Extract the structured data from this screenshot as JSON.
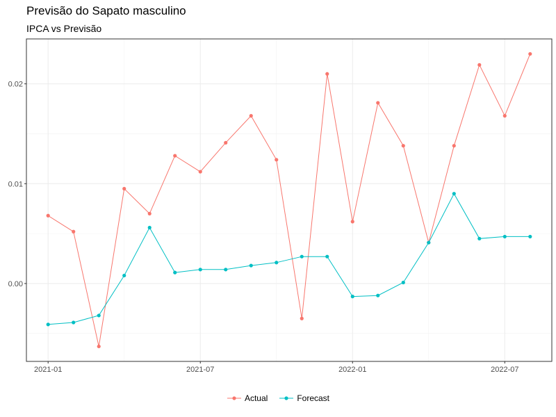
{
  "chart_data": {
    "type": "line",
    "title": "Previsão do Sapato masculino",
    "subtitle": "IPCA vs Previsão",
    "xlabel": "",
    "ylabel": "",
    "x": [
      "2021-01",
      "2021-02",
      "2021-03",
      "2021-04",
      "2021-05",
      "2021-06",
      "2021-07",
      "2021-08",
      "2021-09",
      "2021-10",
      "2021-11",
      "2021-12",
      "2022-01",
      "2022-02",
      "2022-03",
      "2022-04",
      "2022-05",
      "2022-06",
      "2022-07",
      "2022-08"
    ],
    "x_ticks": [
      "2021-01",
      "2021-07",
      "2022-01",
      "2022-07"
    ],
    "y_ticks": [
      0.0,
      0.01,
      0.02
    ],
    "y_tick_labels": [
      "0.00",
      "0.01",
      "0.02"
    ],
    "ylim": [
      -0.0078,
      0.0245
    ],
    "grid": true,
    "legend_position": "bottom",
    "series": [
      {
        "name": "Actual",
        "color": "#F8766D",
        "values": [
          0.0068,
          0.0052,
          -0.0063,
          0.0095,
          0.007,
          0.0128,
          0.0112,
          0.0141,
          0.0168,
          0.0124,
          -0.0035,
          0.021,
          0.0062,
          0.0181,
          0.0138,
          0.0041,
          0.0138,
          0.0219,
          0.0168,
          0.023
        ]
      },
      {
        "name": "Forecast",
        "color": "#00BFC4",
        "values": [
          -0.0041,
          -0.0039,
          -0.0032,
          0.0008,
          0.0056,
          0.0011,
          0.0014,
          0.0014,
          0.0018,
          0.0021,
          0.0027,
          0.0027,
          -0.0013,
          -0.0012,
          0.0001,
          0.0041,
          0.009,
          0.0045,
          0.0047,
          0.0047
        ]
      }
    ]
  }
}
